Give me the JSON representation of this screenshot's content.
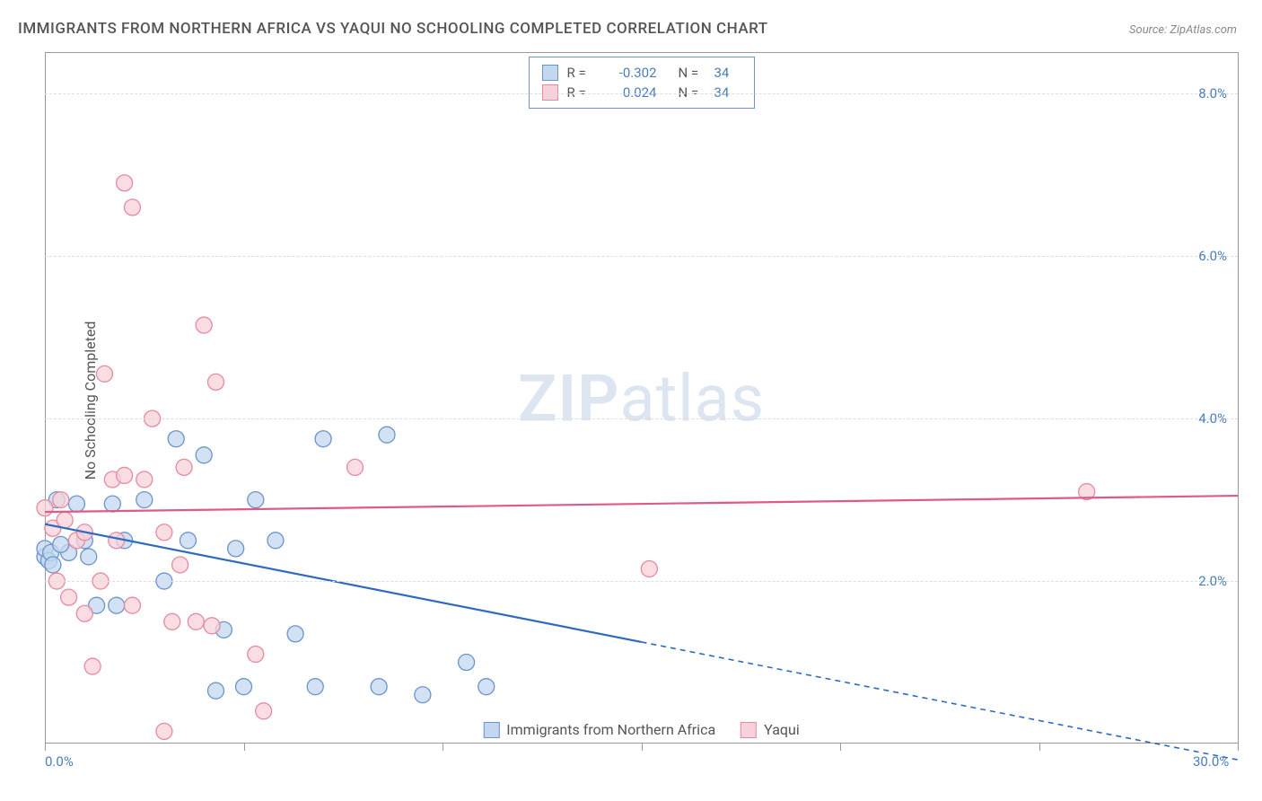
{
  "title": "IMMIGRANTS FROM NORTHERN AFRICA VS YAQUI NO SCHOOLING COMPLETED CORRELATION CHART",
  "source": "Source: ZipAtlas.com",
  "ylabel": "No Schooling Completed",
  "watermark_a": "ZIP",
  "watermark_b": "atlas",
  "chart": {
    "type": "scatter",
    "xlim": [
      0,
      30
    ],
    "ylim": [
      0,
      8.5
    ],
    "x_axis_labels": [
      {
        "x": 0,
        "text": "0.0%"
      },
      {
        "x": 30,
        "text": "30.0%"
      }
    ],
    "x_ticks": [
      0,
      5,
      10,
      15,
      20,
      25,
      30
    ],
    "y_gridlines": [
      2,
      4,
      6,
      8
    ],
    "y_tick_labels": [
      "2.0%",
      "4.0%",
      "6.0%",
      "8.0%"
    ],
    "grid_color": "#dddddd",
    "axis_color": "#999999",
    "tick_label_color": "#4a7ebb",
    "series": [
      {
        "name": "Immigrants from Northern Africa",
        "fill": "#c3d7ef",
        "stroke": "#6b94c9",
        "line_color": "#2e6bbf",
        "r": "-0.302",
        "n": "34",
        "trend": {
          "x1": 0,
          "y1": 2.7,
          "x2": 15,
          "y2": 1.25,
          "ext_x2": 30,
          "ext_y2": -0.2
        },
        "points": [
          [
            0.0,
            2.3
          ],
          [
            0.0,
            2.4
          ],
          [
            0.1,
            2.25
          ],
          [
            0.15,
            2.35
          ],
          [
            0.3,
            3.0
          ],
          [
            0.6,
            2.35
          ],
          [
            0.8,
            2.95
          ],
          [
            1.0,
            2.5
          ],
          [
            1.1,
            2.3
          ],
          [
            1.3,
            1.7
          ],
          [
            1.7,
            2.95
          ],
          [
            1.8,
            1.7
          ],
          [
            2.0,
            2.5
          ],
          [
            2.5,
            3.0
          ],
          [
            3.0,
            2.0
          ],
          [
            3.3,
            3.75
          ],
          [
            3.6,
            2.5
          ],
          [
            4.0,
            3.55
          ],
          [
            4.3,
            0.65
          ],
          [
            4.5,
            1.4
          ],
          [
            4.8,
            2.4
          ],
          [
            5.0,
            0.7
          ],
          [
            5.3,
            3.0
          ],
          [
            5.8,
            2.5
          ],
          [
            6.3,
            1.35
          ],
          [
            6.8,
            0.7
          ],
          [
            7.0,
            3.75
          ],
          [
            8.4,
            0.7
          ],
          [
            8.6,
            3.8
          ],
          [
            9.5,
            0.6
          ],
          [
            10.6,
            1.0
          ],
          [
            11.1,
            0.7
          ],
          [
            0.2,
            2.2
          ],
          [
            0.4,
            2.45
          ]
        ]
      },
      {
        "name": "Yaqui",
        "fill": "#f7d1d9",
        "stroke": "#e58aa0",
        "line_color": "#e05a86",
        "r": "0.024",
        "n": "34",
        "trend": {
          "x1": 0,
          "y1": 2.85,
          "x2": 30,
          "y2": 3.05
        },
        "points": [
          [
            0.0,
            2.9
          ],
          [
            0.2,
            2.65
          ],
          [
            0.3,
            2.0
          ],
          [
            0.5,
            2.75
          ],
          [
            0.6,
            1.8
          ],
          [
            0.8,
            2.5
          ],
          [
            1.0,
            2.6
          ],
          [
            1.0,
            1.6
          ],
          [
            1.2,
            0.95
          ],
          [
            1.5,
            4.55
          ],
          [
            1.7,
            3.25
          ],
          [
            1.8,
            2.5
          ],
          [
            2.0,
            6.9
          ],
          [
            2.0,
            3.3
          ],
          [
            2.2,
            6.6
          ],
          [
            2.2,
            1.7
          ],
          [
            2.5,
            3.25
          ],
          [
            2.7,
            4.0
          ],
          [
            3.0,
            2.6
          ],
          [
            3.0,
            0.15
          ],
          [
            3.2,
            1.5
          ],
          [
            3.4,
            2.2
          ],
          [
            3.5,
            3.4
          ],
          [
            3.8,
            1.5
          ],
          [
            4.0,
            5.15
          ],
          [
            4.2,
            1.45
          ],
          [
            4.3,
            4.45
          ],
          [
            5.3,
            1.1
          ],
          [
            5.5,
            0.4
          ],
          [
            7.8,
            3.4
          ],
          [
            15.2,
            2.15
          ],
          [
            26.2,
            3.1
          ],
          [
            0.4,
            3.0
          ],
          [
            1.4,
            2.0
          ]
        ]
      }
    ],
    "legend_bottom": [
      {
        "label": "Immigrants from Northern Africa",
        "fill": "#c3d7ef",
        "stroke": "#6b94c9"
      },
      {
        "label": "Yaqui",
        "fill": "#f7d1d9",
        "stroke": "#e58aa0"
      }
    ],
    "marker_radius": 9
  }
}
